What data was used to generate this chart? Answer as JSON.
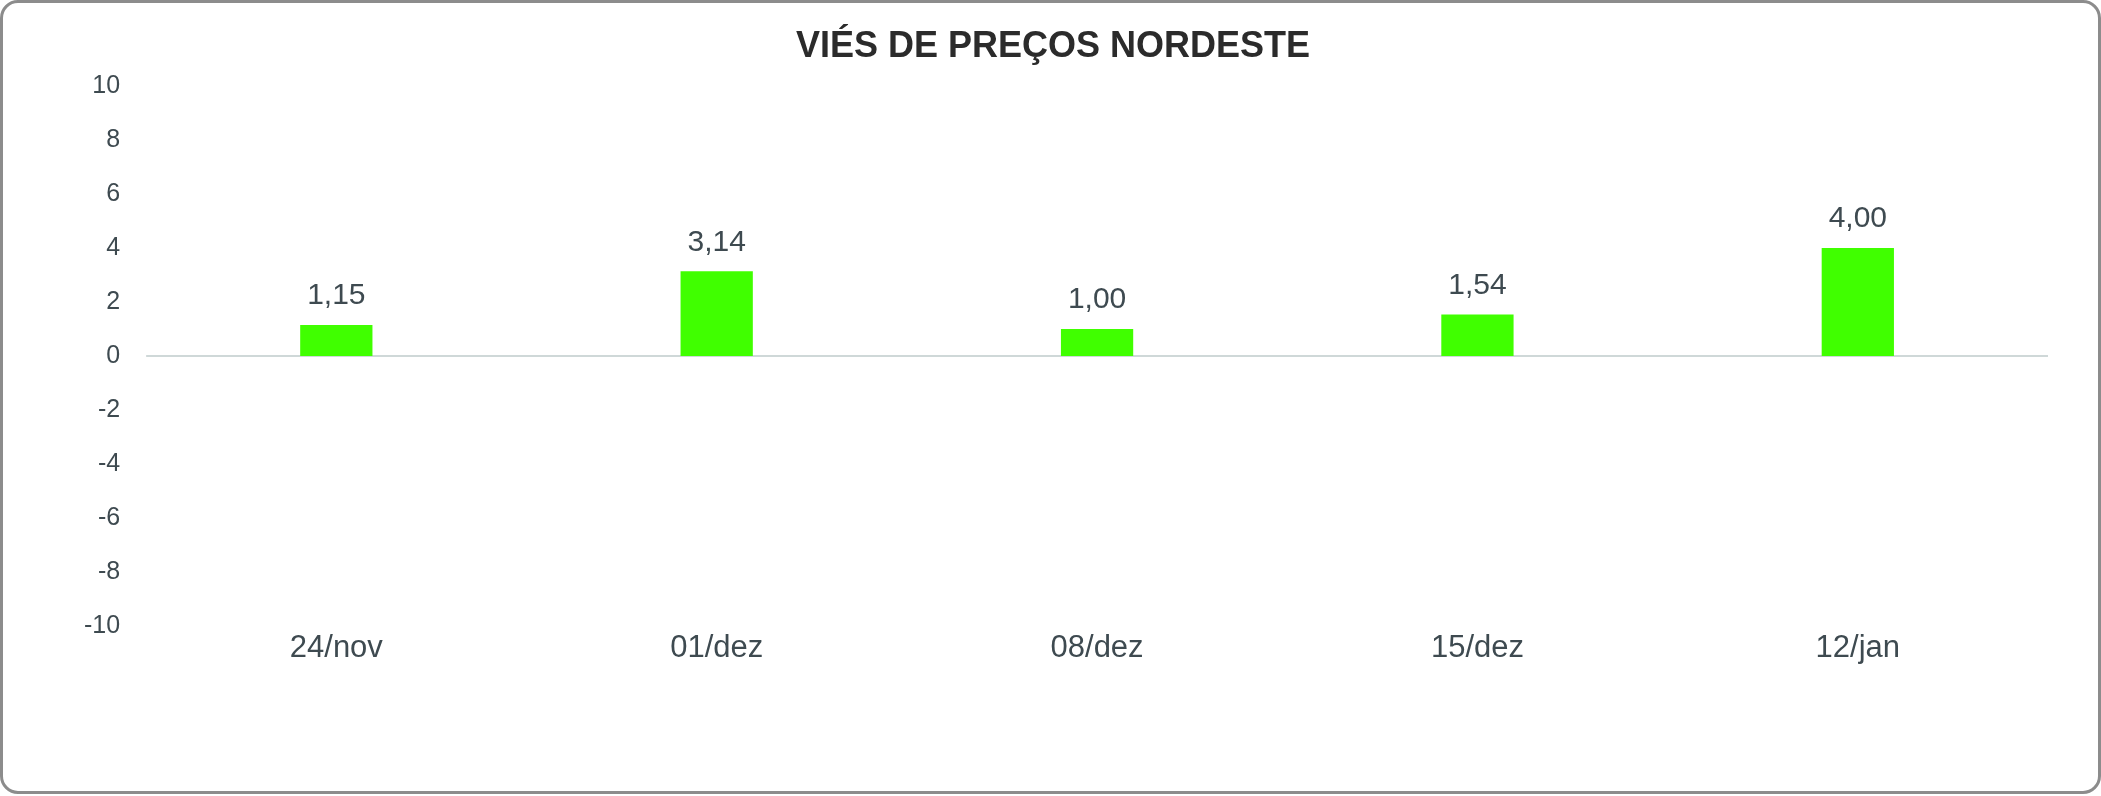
{
  "chart_data": {
    "type": "bar",
    "title": "VIÉS DE PREÇOS NORDESTE",
    "categories": [
      "24/nov",
      "01/dez",
      "08/dez",
      "15/dez",
      "12/jan"
    ],
    "values": [
      1.15,
      3.14,
      1.0,
      1.54,
      4.0
    ],
    "value_labels": [
      "1,15",
      "3,14",
      "1,00",
      "1,54",
      "4,00"
    ],
    "color": "#40ff00",
    "ylim": [
      -10,
      10
    ],
    "yticks": [
      -10,
      -8,
      -6,
      -4,
      -2,
      0,
      2,
      4,
      6,
      8,
      10
    ],
    "ref_lines": [
      {
        "axis": "y",
        "value": 0,
        "color": "#cfd8d8"
      }
    ],
    "grid": false,
    "legend": false
  }
}
